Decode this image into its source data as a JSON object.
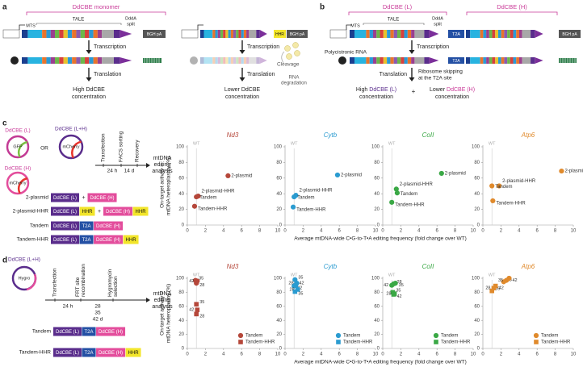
{
  "panel_a": {
    "label": "a",
    "monomer": "DdCBE monomer",
    "tale": "TALE",
    "mts": "MTS",
    "ddda": [
      "DddA",
      "split"
    ],
    "cmv": [
      "CMV",
      "CMV"
    ],
    "bgh": [
      "BGH pA",
      "BGH pA"
    ],
    "hhr": "HHR",
    "transcription": [
      "Transcription",
      "Transcription"
    ],
    "translation": [
      "Translation",
      "Translation"
    ],
    "cleavage": "Cleavage",
    "degradation": [
      "RNA",
      "degradation"
    ],
    "high": [
      "High DdCBE",
      "concentration"
    ],
    "lower": [
      "Lower DdCBE",
      "concentration"
    ]
  },
  "panel_b": {
    "label": "b",
    "left": "DdCBE (L)",
    "right": "DdCBE (H)",
    "tale": "TALE",
    "mts": "MTS",
    "ddda": [
      "DddA",
      "split"
    ],
    "cmv": "CMV",
    "t2a": [
      "T2A",
      "T2A"
    ],
    "bgh": "BGH pA",
    "transcription": "Transcription",
    "polycistronic": "Polycistronic RNA",
    "translation": "Translation",
    "skipping": [
      "Ribosome skipping",
      "at the T2A site"
    ],
    "high": {
      "lead": "High",
      "name": "DdCBE (L)",
      "tail": "concentration"
    },
    "plus": "+",
    "lower": {
      "lead": "Lower",
      "name": "DdCBE (H)",
      "tail": "concentration"
    }
  },
  "panel_c": {
    "label": "c",
    "plasmids": [
      {
        "name": "DdCBE (L)",
        "marker": "GFP"
      },
      {
        "name": "DdCBE (L+H)",
        "marker": "mCherry"
      },
      {
        "name": "DdCBE (H)",
        "marker": "mCherry"
      }
    ],
    "or": "OR",
    "steps": [
      [
        "Transfection"
      ],
      [
        "FACS sorting"
      ],
      [
        "Recovery"
      ]
    ],
    "times": [
      "24 h",
      "14 d"
    ],
    "analysis": [
      "mtDNA",
      "editing",
      "analysis"
    ],
    "constructs": [
      {
        "name": "2-plasmid",
        "parts": [
          {
            "text": "DdCBE (L)",
            "color": "#5a2d8c"
          },
          {
            "text": "+"
          },
          {
            "text": "DdCBE (H)",
            "color": "#e34d9c"
          }
        ]
      },
      {
        "name": "2-plasmid-HHR",
        "parts": [
          {
            "text": "DdCBE (L)",
            "color": "#5a2d8c"
          },
          {
            "text": "HHR",
            "color": "#f2e52a"
          },
          {
            "text": "+"
          },
          {
            "text": "DdCBE (H)",
            "color": "#e34d9c"
          },
          {
            "text": "HHR",
            "color": "#f2e52a"
          }
        ]
      },
      {
        "name": "Tandem",
        "parts": [
          {
            "text": "DdCBE (L)",
            "color": "#5a2d8c"
          },
          {
            "text": "T2A",
            "color": "#2450a4"
          },
          {
            "text": "DdCBE (H)",
            "color": "#e34d9c"
          }
        ]
      },
      {
        "name": "Tandem-HHR",
        "parts": [
          {
            "text": "DdCBE (L)",
            "color": "#5a2d8c"
          },
          {
            "text": "T2A",
            "color": "#2450a4"
          },
          {
            "text": "DdCBE (H)",
            "color": "#e34d9c"
          },
          {
            "text": "HHR",
            "color": "#f2e52a"
          }
        ]
      }
    ]
  },
  "panel_d": {
    "label": "d",
    "plasmid": {
      "name": "DdCBE (L+H)",
      "marker": "Hygro"
    },
    "steps": [
      [
        "Transfection"
      ],
      [
        "FRT site",
        "recombination"
      ],
      [
        "Hygromycin",
        "selection"
      ]
    ],
    "times": [
      [
        "24 h"
      ],
      [
        "28",
        "35",
        "42 d"
      ]
    ],
    "analysis": [
      "mtDNA",
      "editing",
      "analysis"
    ],
    "constructs": [
      {
        "name": "Tandem",
        "parts": [
          {
            "text": "DdCBE (L)",
            "color": "#5a2d8c"
          },
          {
            "text": "T2A",
            "color": "#2450a4"
          },
          {
            "text": "DdCBE (H)",
            "color": "#e34d9c"
          }
        ]
      },
      {
        "name": "Tandem-HHR",
        "parts": [
          {
            "text": "DdCBE (L)",
            "color": "#5a2d8c"
          },
          {
            "text": "T2A",
            "color": "#2450a4"
          },
          {
            "text": "DdCBE (H)",
            "color": "#e34d9c"
          },
          {
            "text": "HHR",
            "color": "#f2e52a"
          }
        ]
      }
    ]
  },
  "chart_data": [
    {
      "type": "scatter",
      "title": "Nd3",
      "color": "#b5473a",
      "ylabel": [
        "On-target activity =",
        "mtDNA heteroplasmy (%)"
      ],
      "xlabel": "Average mtDNA-wide C•G-to-T•A editing frequency (fold change over WT)",
      "reference": {
        "x": 1,
        "label": "WT"
      },
      "xlim": [
        0,
        10
      ],
      "xticks": [
        0,
        2,
        4,
        6,
        8,
        10
      ],
      "ylim": [
        0,
        100
      ],
      "yticks": [
        0,
        20,
        40,
        60,
        80,
        100
      ],
      "series": [
        {
          "name": "2-plasmid",
          "x": [
            4.5
          ],
          "values": [
            63
          ]
        },
        {
          "name": "2-plasmid-HHR",
          "x": [
            1.2
          ],
          "values": [
            37
          ]
        },
        {
          "name": "Tandem",
          "x": [
            1.0
          ],
          "values": [
            36
          ]
        },
        {
          "name": "Tandem-HHR",
          "x": [
            0.8
          ],
          "values": [
            24
          ]
        }
      ]
    },
    {
      "type": "scatter",
      "title": "Cytb",
      "color": "#2a9bd0",
      "reference": {
        "x": 1,
        "label": "WT"
      },
      "xlim": [
        0,
        10
      ],
      "xticks": [
        0,
        2,
        4,
        6,
        8,
        10
      ],
      "ylim": [
        0,
        100
      ],
      "yticks": [
        0,
        20,
        40,
        60,
        80,
        100
      ],
      "series": [
        {
          "name": "2-plasmid",
          "x": [
            5.8
          ],
          "values": [
            64
          ]
        },
        {
          "name": "2-plasmid-HHR",
          "x": [
            1.2
          ],
          "values": [
            38
          ]
        },
        {
          "name": "Tandem",
          "x": [
            1.0
          ],
          "values": [
            36
          ]
        },
        {
          "name": "Tandem-HHR",
          "x": [
            0.9
          ],
          "values": [
            23
          ]
        }
      ]
    },
    {
      "type": "scatter",
      "title": "CoII",
      "color": "#3aa845",
      "reference": {
        "x": 1,
        "label": "WT"
      },
      "xlim": [
        0,
        10
      ],
      "xticks": [
        0,
        2,
        4,
        6,
        8,
        10
      ],
      "ylim": [
        0,
        100
      ],
      "yticks": [
        0,
        20,
        40,
        60,
        80,
        100
      ],
      "series": [
        {
          "name": "2-plasmid",
          "x": [
            6.5
          ],
          "values": [
            66
          ]
        },
        {
          "name": "2-plasmid-HHR",
          "x": [
            1.5
          ],
          "values": [
            46
          ]
        },
        {
          "name": "Tandem",
          "x": [
            1.6
          ],
          "values": [
            41
          ]
        },
        {
          "name": "Tandem-HHR",
          "x": [
            1.0
          ],
          "values": [
            29
          ]
        }
      ]
    },
    {
      "type": "scatter",
      "title": "Atp6",
      "color": "#e08a2c",
      "reference": {
        "x": 1,
        "label": "WT"
      },
      "xlim": [
        0,
        10
      ],
      "xticks": [
        0,
        2,
        4,
        6,
        8,
        10
      ],
      "ylim": [
        0,
        100
      ],
      "yticks": [
        0,
        20,
        40,
        60,
        80,
        100
      ],
      "series": [
        {
          "name": "2-plasmid",
          "x": [
            8.7
          ],
          "values": [
            69
          ]
        },
        {
          "name": "2-plasmid-HHR",
          "x": [
            1.8
          ],
          "values": [
            50
          ]
        },
        {
          "name": "Tandem",
          "x": [
            1.0
          ],
          "values": [
            50
          ]
        },
        {
          "name": "Tandem-HHR",
          "x": [
            1.1
          ],
          "values": [
            31
          ]
        }
      ]
    },
    {
      "type": "scatter",
      "title": "Nd3",
      "color": "#b5473a",
      "legend": "lower right",
      "ylabel": [
        "On-target activity =",
        "mtDNA heteroplasmy (%)"
      ],
      "xlabel": "Average mtDNA-wide C•G-to-T•A editing frequency (fold change over WT)",
      "reference": {
        "x": 1,
        "label": "WT"
      },
      "xlim": [
        0,
        10
      ],
      "xticks": [
        0,
        2,
        4,
        6,
        8,
        10
      ],
      "ylim": [
        0,
        100
      ],
      "yticks": [
        0,
        20,
        40,
        60,
        80,
        100
      ],
      "series": [
        {
          "name": "Tandem",
          "marker": "circle",
          "x": [
            0.9,
            1.1,
            1.0
          ],
          "values": [
            97,
            96,
            93
          ],
          "labels": [
            "35",
            "42",
            "28"
          ]
        },
        {
          "name": "Tandem-HHR",
          "marker": "square",
          "x": [
            1.0,
            1.1,
            1.0
          ],
          "values": [
            63,
            55,
            49
          ],
          "labels": [
            "35",
            "42",
            "28"
          ]
        }
      ]
    },
    {
      "type": "scatter",
      "title": "Cytb",
      "color": "#2a9bd0",
      "legend": "lower right",
      "reference": {
        "x": 1,
        "label": "WT"
      },
      "xlim": [
        0,
        10
      ],
      "xticks": [
        0,
        2,
        4,
        6,
        8,
        10
      ],
      "ylim": [
        0,
        100
      ],
      "yticks": [
        0,
        20,
        40,
        60,
        80,
        100
      ],
      "series": [
        {
          "name": "Tandem",
          "marker": "circle",
          "x": [
            1.1,
            1.3,
            1.0
          ],
          "values": [
            98,
            93,
            89
          ],
          "labels": [
            "35",
            "28",
            "42"
          ]
        },
        {
          "name": "Tandem-HHR",
          "marker": "square",
          "x": [
            1.2,
            1.4,
            1.1
          ],
          "values": [
            90,
            84,
            81
          ],
          "labels": [
            "42",
            "28",
            "35"
          ]
        }
      ]
    },
    {
      "type": "scatter",
      "title": "CoII",
      "color": "#3aa845",
      "legend": "lower right",
      "reference": {
        "x": 1,
        "label": "WT"
      },
      "xlim": [
        0,
        10
      ],
      "xticks": [
        0,
        2,
        4,
        6,
        8,
        10
      ],
      "ylim": [
        0,
        100
      ],
      "yticks": [
        0,
        20,
        40,
        60,
        80,
        100
      ],
      "series": [
        {
          "name": "Tandem",
          "marker": "circle",
          "x": [
            1.2,
            1.0,
            1.4
          ],
          "values": [
            92,
            90,
            93
          ],
          "labels": [
            "28",
            "42",
            "35"
          ]
        },
        {
          "name": "Tandem-HHR",
          "marker": "square",
          "x": [
            1.1,
            1.3,
            1.2
          ],
          "values": [
            80,
            78,
            77
          ],
          "labels": [
            "35",
            "28",
            "42"
          ]
        }
      ]
    },
    {
      "type": "scatter",
      "title": "Atp6",
      "color": "#e08a2c",
      "legend": "lower right",
      "reference": {
        "x": 1,
        "label": "WT"
      },
      "xlim": [
        0,
        10
      ],
      "xticks": [
        0,
        2,
        4,
        6,
        8,
        10
      ],
      "ylim": [
        0,
        100
      ],
      "yticks": [
        0,
        20,
        40,
        60,
        80,
        100
      ],
      "series": [
        {
          "name": "Tandem",
          "marker": "circle",
          "x": [
            2.3,
            2.6,
            2.9
          ],
          "values": [
            95,
            97,
            100
          ],
          "labels": [
            "28",
            "35",
            "42"
          ]
        },
        {
          "name": "Tandem-HHR",
          "marker": "square",
          "x": [
            1.0,
            1.2,
            1.4
          ],
          "values": [
            82,
            86,
            89
          ],
          "labels": [
            "35",
            "28",
            "42"
          ]
        }
      ]
    }
  ]
}
